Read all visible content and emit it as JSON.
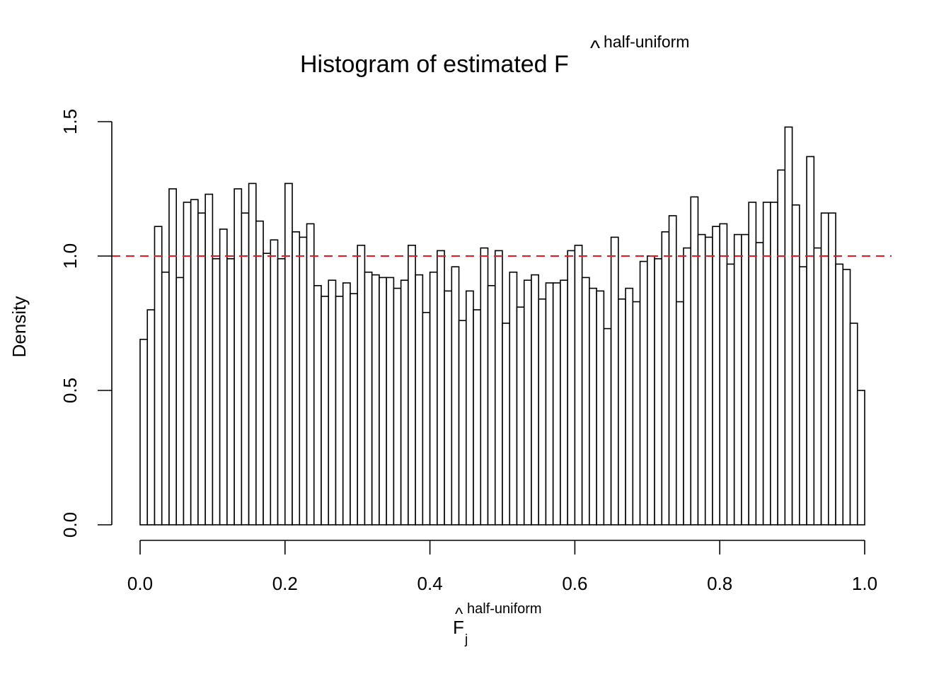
{
  "chart_data": {
    "type": "bar",
    "title": {
      "main": "Histogram of estimated ",
      "symbol": "F",
      "superscript": "half-uniform"
    },
    "xlabel": {
      "symbol": "F",
      "subscript": "j",
      "superscript": "half-uniform"
    },
    "ylabel": "Density",
    "xlim": [
      0,
      1
    ],
    "ylim": [
      0,
      1.5
    ],
    "x_ticks": [
      "0.0",
      "0.2",
      "0.4",
      "0.6",
      "0.8",
      "1.0"
    ],
    "y_ticks": [
      "0.0",
      "0.5",
      "1.0",
      "1.5"
    ],
    "bin_width": 0.01,
    "bin_start": 0,
    "values": [
      0.69,
      0.8,
      1.11,
      0.94,
      1.25,
      0.92,
      1.2,
      1.21,
      1.16,
      1.23,
      0.99,
      1.1,
      0.99,
      1.25,
      1.16,
      1.27,
      1.13,
      1.01,
      1.06,
      0.99,
      1.27,
      1.09,
      1.07,
      1.12,
      0.89,
      0.85,
      0.91,
      0.85,
      0.9,
      0.86,
      1.04,
      0.94,
      0.93,
      0.92,
      0.92,
      0.88,
      0.91,
      1.04,
      0.93,
      0.79,
      0.94,
      1.02,
      0.87,
      0.96,
      0.76,
      0.87,
      0.8,
      1.03,
      0.89,
      1.02,
      0.75,
      0.94,
      0.81,
      0.91,
      0.93,
      0.84,
      0.9,
      0.9,
      0.91,
      1.02,
      1.04,
      0.92,
      0.88,
      0.87,
      0.73,
      1.07,
      0.84,
      0.88,
      0.83,
      0.98,
      1.0,
      0.99,
      1.09,
      1.15,
      0.83,
      1.03,
      1.22,
      1.08,
      1.07,
      1.11,
      1.12,
      0.97,
      1.08,
      1.08,
      1.2,
      1.05,
      1.2,
      1.2,
      1.32,
      1.48,
      1.19,
      0.96,
      1.37,
      1.03,
      1.16,
      1.16,
      0.97,
      0.95,
      0.75,
      0.5
    ],
    "reference_line": {
      "y": 1.0,
      "style": "dashed",
      "color": "#e41a1c"
    },
    "bar_fill": "#ffffff",
    "bar_stroke": "#000000",
    "grid": false
  }
}
